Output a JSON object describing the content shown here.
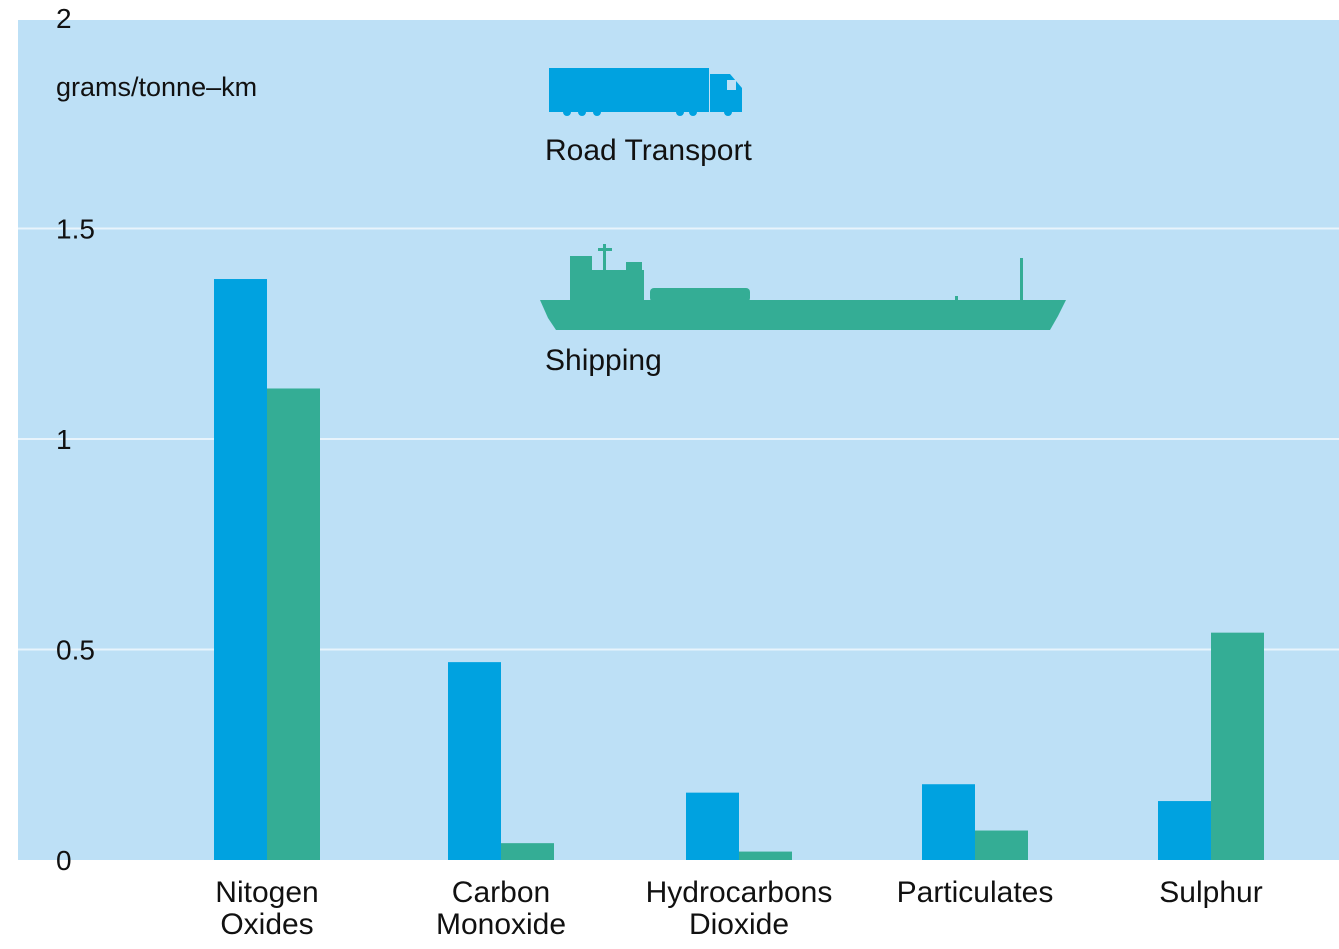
{
  "colors": {
    "background": "#bde0f6",
    "grid": "#e8f4fc",
    "road": "#00a2e0",
    "shipping": "#34ad95",
    "text": "#111111"
  },
  "icons": {
    "road": "truck-icon",
    "shipping": "ship-icon"
  },
  "chart_data": {
    "type": "bar",
    "title": "",
    "xlabel": "",
    "ylabel": "grams/tonne–km",
    "ylim": [
      0,
      2
    ],
    "yticks": [
      "0",
      "0.5",
      "1",
      "1.5",
      "2"
    ],
    "grid": true,
    "legend_position": "top-center",
    "categories": [
      [
        "Nitogen",
        "Oxides"
      ],
      [
        "Carbon",
        "Monoxide"
      ],
      [
        "Hydrocarbons",
        "Dioxide"
      ],
      [
        "Particulates"
      ],
      [
        "Sulphur"
      ]
    ],
    "series": [
      {
        "name": "Road Transport",
        "color": "#00a2e0",
        "values": [
          1.38,
          0.47,
          0.16,
          0.18,
          0.14
        ]
      },
      {
        "name": "Shipping",
        "color": "#34ad95",
        "values": [
          1.12,
          0.04,
          0.02,
          0.07,
          0.54
        ]
      }
    ]
  }
}
